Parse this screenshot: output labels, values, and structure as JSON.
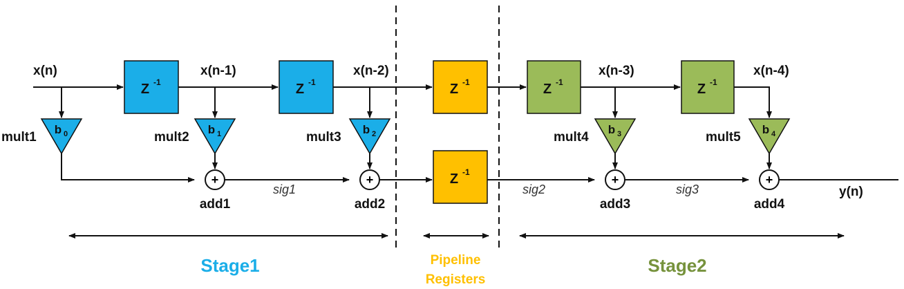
{
  "colors": {
    "stage1": "#1BAEE8",
    "pipeline": "#FFC000",
    "stage2": "#9BBB59",
    "line": "#111111"
  },
  "signals": {
    "x0": "x(n)",
    "x1": "x(n-1)",
    "x2": "x(n-2)",
    "x3": "x(n-3)",
    "x4": "x(n-4)",
    "y": "y(n)",
    "sig1": "sig1",
    "sig2": "sig2",
    "sig3": "sig3"
  },
  "delay": {
    "base": "Z",
    "exp": "-1"
  },
  "multipliers": [
    {
      "label": "mult1",
      "coef": "b",
      "sub": "0"
    },
    {
      "label": "mult2",
      "coef": "b",
      "sub": "1"
    },
    {
      "label": "mult3",
      "coef": "b",
      "sub": "2"
    },
    {
      "label": "mult4",
      "coef": "b",
      "sub": "3"
    },
    {
      "label": "mult5",
      "coef": "b",
      "sub": "4"
    }
  ],
  "adders": [
    {
      "label": "add1",
      "symbol": "+"
    },
    {
      "label": "add2",
      "symbol": "+"
    },
    {
      "label": "add3",
      "symbol": "+"
    },
    {
      "label": "add4",
      "symbol": "+"
    }
  ],
  "stages": {
    "stage1": "Stage1",
    "pipeline_line1": "Pipeline",
    "pipeline_line2": "Registers",
    "stage2": "Stage2"
  }
}
